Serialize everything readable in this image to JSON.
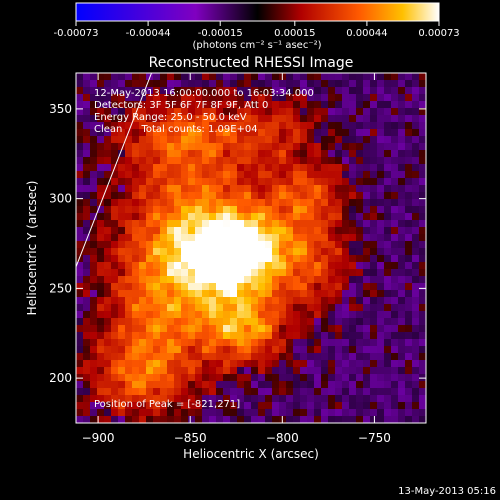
{
  "chart_data": {
    "type": "heatmap",
    "title": "Reconstructed RHESSI Image",
    "xlabel": "Heliocentric X (arcsec)",
    "ylabel": "Heliocentric Y (arcsec)",
    "xlim": [
      -912,
      -722
    ],
    "ylim": [
      175,
      370
    ],
    "xticks": [
      -900,
      -850,
      -800,
      -750
    ],
    "yticks": [
      200,
      250,
      300,
      350
    ],
    "colorbar": {
      "ticks": [
        -0.00073,
        -0.00044,
        -0.00015,
        0.00015,
        0.00044,
        0.00073
      ],
      "tick_labels": [
        "-0.00073",
        "-0.00044",
        "-0.00015",
        "0.00015",
        "0.00044",
        "0.00073"
      ],
      "range": [
        -0.00073,
        0.00073
      ],
      "unit_label": "(photons cm⁻² s⁻¹ asec⁻²)"
    },
    "annotations": {
      "time_range": "12-May-2013 16:00:00.000 to 16:03:34.000",
      "detectors": "Detectors: 3F 5F 6F 7F 8F 9F, Att 0",
      "energy": "Energy Range: 25.0 - 50.0 keV",
      "method": "Clean      Total counts: 1.09E+04",
      "peak": "Position of Peak = [-821,271]"
    },
    "peak_position": [
      -821,
      271
    ],
    "emission_sources": [
      {
        "x": -825,
        "y": 270,
        "sx": 20,
        "sy": 16,
        "amp": 1.0
      },
      {
        "x": -848,
        "y": 283,
        "sx": 28,
        "sy": 35,
        "amp": 0.55
      },
      {
        "x": -820,
        "y": 228,
        "sx": 16,
        "sy": 14,
        "amp": 0.6
      },
      {
        "x": -786,
        "y": 302,
        "sx": 15,
        "sy": 15,
        "amp": 0.42
      },
      {
        "x": -853,
        "y": 335,
        "sx": 25,
        "sy": 14,
        "amp": 0.4
      },
      {
        "x": -868,
        "y": 232,
        "sx": 22,
        "sy": 32,
        "amp": 0.42
      },
      {
        "x": -880,
        "y": 200,
        "sx": 18,
        "sy": 15,
        "amp": 0.35
      },
      {
        "x": -782,
        "y": 262,
        "sx": 14,
        "sy": 18,
        "amp": 0.35
      },
      {
        "x": -802,
        "y": 340,
        "sx": 16,
        "sy": 12,
        "amp": 0.3
      }
    ],
    "limb_line": [
      [
        -912,
        262
      ],
      [
        -871,
        370
      ]
    ]
  },
  "footer": {
    "timestamp": "13-May-2013 05:16"
  }
}
